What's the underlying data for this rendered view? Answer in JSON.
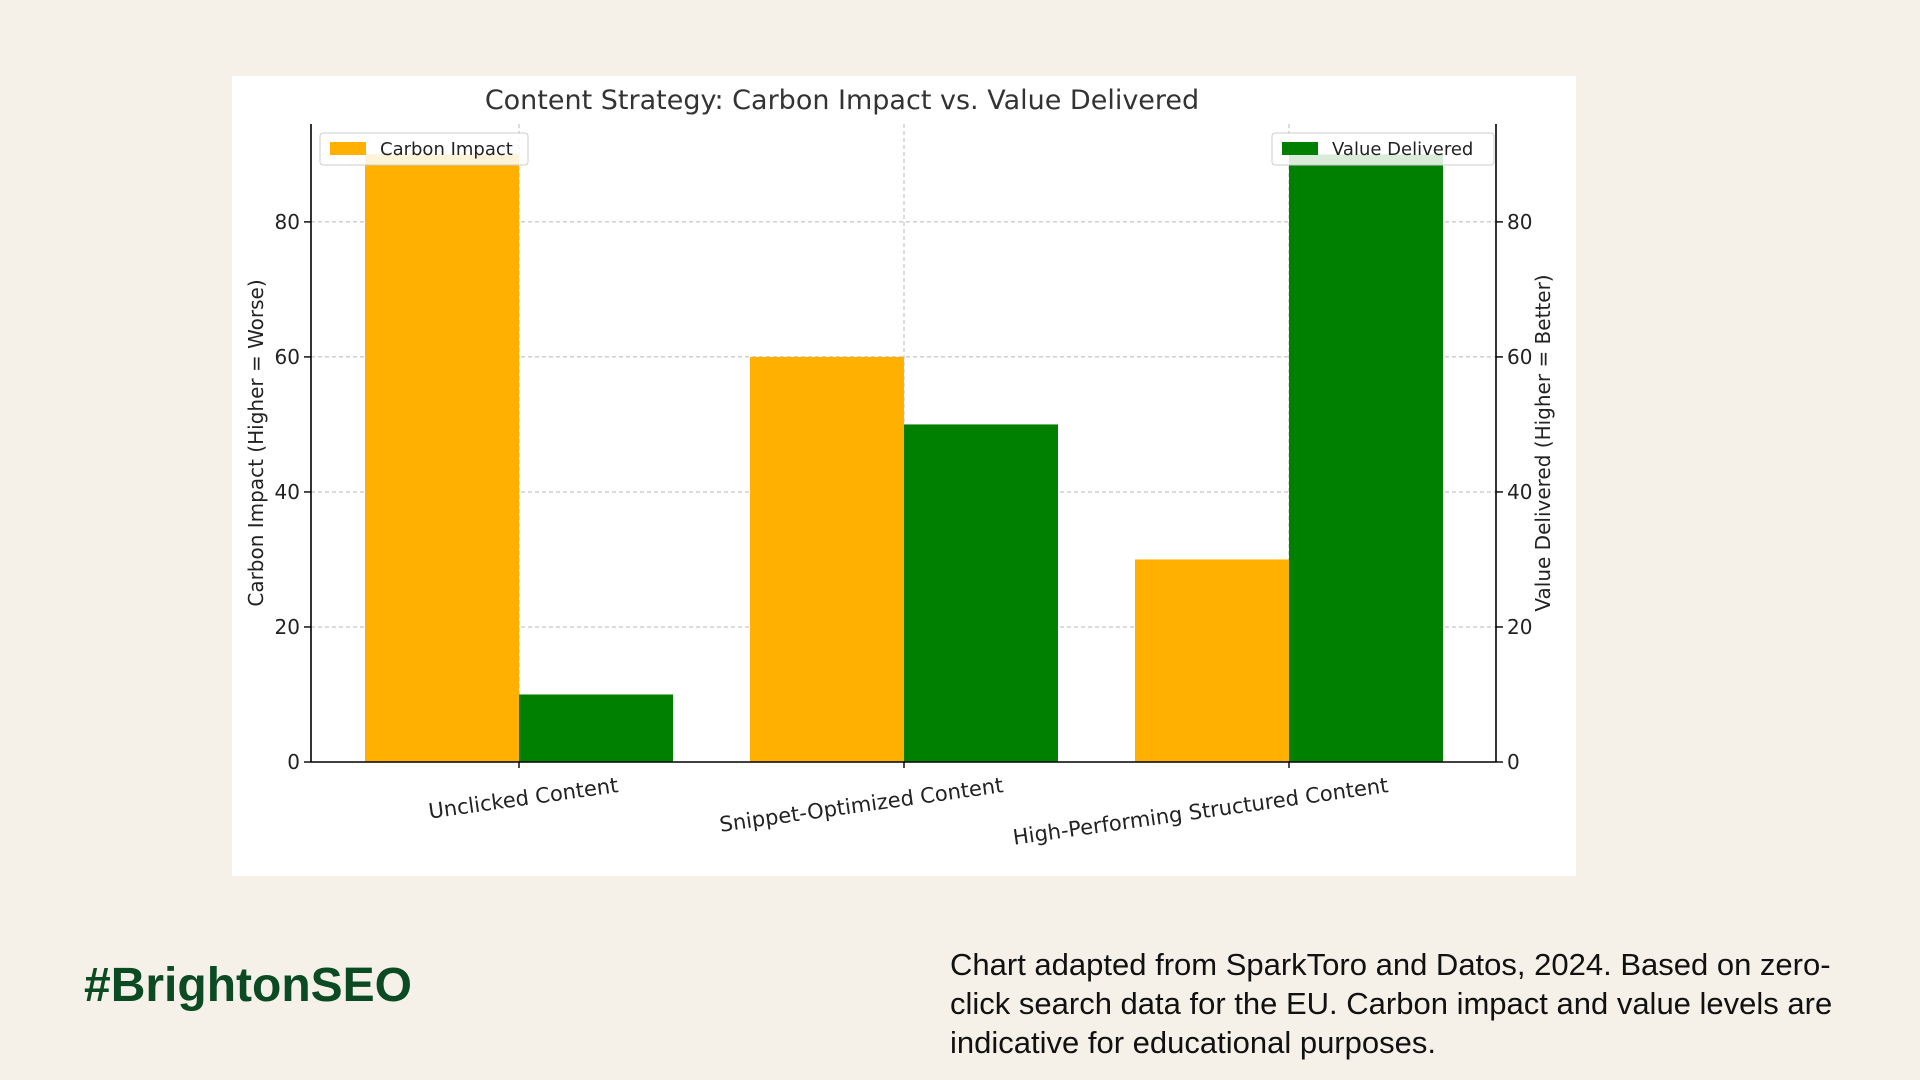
{
  "colors": {
    "background": "#f5f1e8",
    "carbon": "#ffb000",
    "value": "#008000",
    "brand": "#0b4a22"
  },
  "chart_data": {
    "type": "bar",
    "title": "Content Strategy: Carbon Impact vs. Value Delivered",
    "categories": [
      "Unclicked Content",
      "Snippet-Optimized Content",
      "High-Performing Structured Content"
    ],
    "series": [
      {
        "name": "Carbon Impact",
        "axis": "left",
        "color": "#ffb000",
        "values": [
          90,
          60,
          30
        ]
      },
      {
        "name": "Value Delivered",
        "axis": "right",
        "color": "#008000",
        "values": [
          10,
          50,
          90
        ]
      }
    ],
    "ylabel_left": "Carbon Impact (Higher = Worse)",
    "ylabel_right": "Value Delivered (Higher = Better)",
    "ylim": [
      0,
      94.5
    ],
    "yticks": [
      0,
      20,
      40,
      60,
      80
    ],
    "grid": true,
    "legend_left_position": "upper-left",
    "legend_right_position": "upper-right"
  },
  "footer": {
    "hashtag": "#BrightonSEO",
    "caption": "Chart adapted from SparkToro and Datos, 2024. Based on zero-click search data for the EU. Carbon impact and value levels are indicative for educational purposes."
  }
}
